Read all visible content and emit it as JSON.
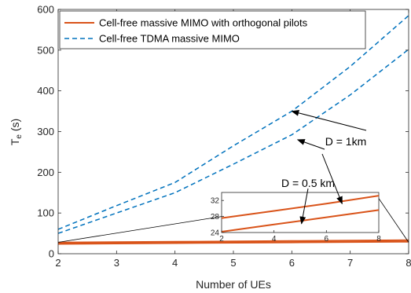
{
  "chart_data": {
    "type": "line",
    "xlabel": "Number of UEs",
    "ylabel_main": "T",
    "ylabel_sub": "e",
    "ylabel_unit": " (s)",
    "xlim": [
      2,
      8
    ],
    "ylim": [
      0,
      600
    ],
    "xticks": [
      2,
      3,
      4,
      5,
      6,
      7,
      8
    ],
    "yticks": [
      0,
      100,
      200,
      300,
      400,
      500,
      600
    ],
    "grid": false,
    "legend_position": "top-left",
    "colors": {
      "orthogonal": "#d95319",
      "tdma": "#0072bd"
    },
    "series": [
      {
        "name": "Cell-free massive MIMO with orthogonal pilots",
        "style": "solid",
        "color": "#d95319",
        "x": [
          2,
          4,
          6,
          8
        ],
        "y": [
          27.6,
          29.4,
          31.2,
          33.2
        ]
      },
      {
        "name": "",
        "style": "solid",
        "color": "#d95319",
        "x": [
          2,
          4,
          6,
          8
        ],
        "y": [
          24.2,
          26.0,
          27.8,
          29.6
        ]
      },
      {
        "name": "Cell-free TDMA massive MIMO",
        "style": "dashed",
        "color": "#0072bd",
        "x": [
          2,
          3,
          4,
          5,
          6,
          7,
          8
        ],
        "y": [
          60,
          118,
          175,
          265,
          350,
          460,
          585
        ]
      },
      {
        "name": "",
        "style": "dashed",
        "color": "#0072bd",
        "x": [
          2,
          3,
          4,
          5,
          6,
          7,
          8
        ],
        "y": [
          50,
          100,
          150,
          220,
          292,
          390,
          502
        ]
      }
    ],
    "annotations": [
      {
        "text": "D = 1km",
        "arrows_to": [
          [
            6,
            350
          ],
          [
            6.6,
            31.2
          ]
        ]
      },
      {
        "text": "D = 0.5 km",
        "arrows_to": [
          [
            6.1,
            280
          ],
          [
            5.05,
            26.2
          ]
        ]
      }
    ],
    "inset": {
      "xlim": [
        2,
        8
      ],
      "ylim": [
        24,
        34
      ],
      "xticks": [
        2,
        4,
        6,
        8
      ],
      "yticks": [
        24,
        28,
        32
      ]
    }
  }
}
